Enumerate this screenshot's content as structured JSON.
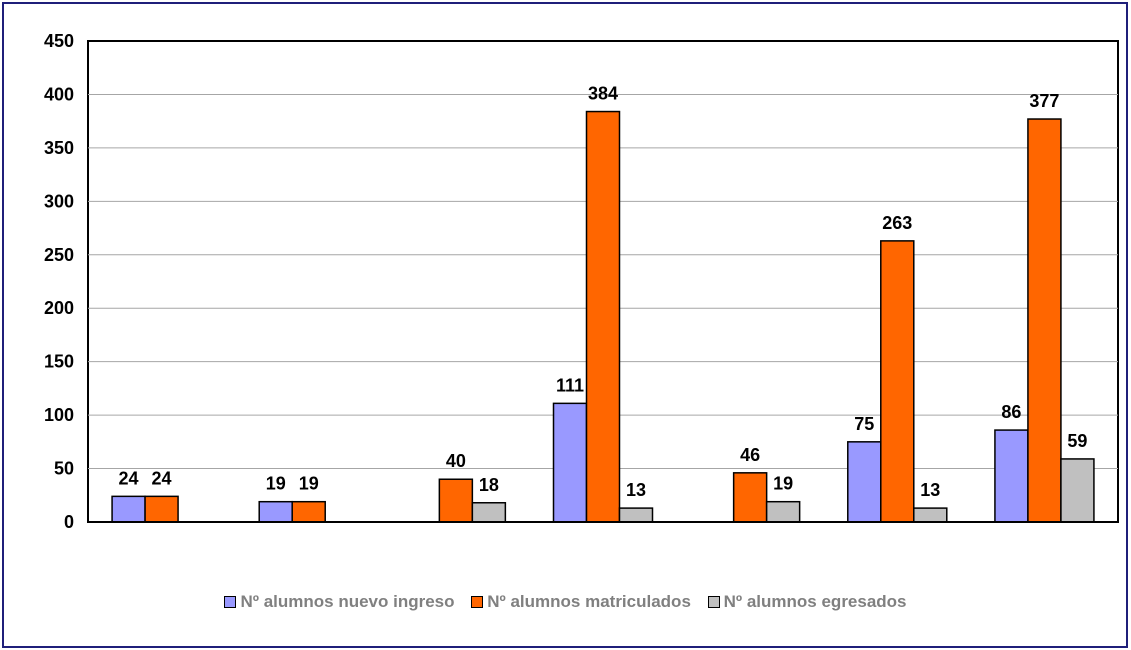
{
  "chart_data": {
    "type": "bar",
    "categories": [
      "",
      "",
      "",
      "",
      "",
      "",
      ""
    ],
    "series": [
      {
        "name": "Nº alumnos nuevo ingreso",
        "color": "#9999ff",
        "values": [
          24,
          19,
          null,
          111,
          null,
          75,
          86
        ]
      },
      {
        "name": "Nº alumnos matriculados",
        "color": "#ff6600",
        "values": [
          24,
          19,
          40,
          384,
          46,
          263,
          377
        ]
      },
      {
        "name": "Nº alumnos egresados",
        "color": "#c0c0c0",
        "values": [
          null,
          null,
          18,
          13,
          19,
          13,
          59
        ]
      }
    ],
    "ylim": [
      0,
      450
    ],
    "yticks": [
      0,
      50,
      100,
      150,
      200,
      250,
      300,
      350,
      400,
      450
    ],
    "grid": true,
    "legend_position": "bottom",
    "title": "",
    "xlabel": "",
    "ylabel": ""
  }
}
